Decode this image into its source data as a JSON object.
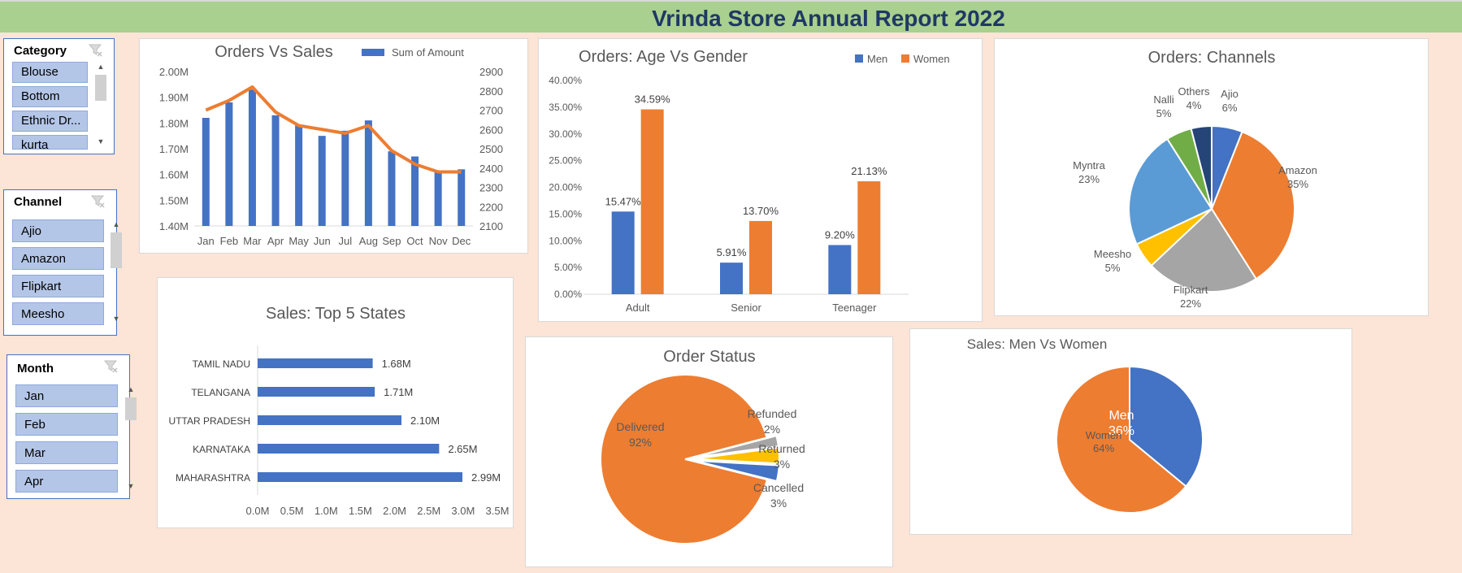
{
  "report_title": "Vrinda Store Annual Report 2022",
  "slicers": {
    "category": {
      "title": "Category",
      "items": [
        "Blouse",
        "Bottom",
        "Ethnic Dr...",
        "kurta"
      ]
    },
    "channel": {
      "title": "Channel",
      "items": [
        "Ajio",
        "Amazon",
        "Flipkart",
        "Meesho"
      ]
    },
    "month": {
      "title": "Month",
      "items": [
        "Jan",
        "Feb",
        "Mar",
        "Apr"
      ]
    }
  },
  "icons": {
    "clear_filter": "clear-filter-icon",
    "scroll_up": "▲",
    "scroll_down": "▼"
  },
  "colors": {
    "blue": "#4472c4",
    "orange": "#ed7d31",
    "gray": "#a5a5a5",
    "gold": "#ffc000",
    "lightblue": "#5b9bd5",
    "green": "#70ad47",
    "navy": "#264478",
    "banner": "#a9d08e",
    "title": "#1f3864"
  },
  "chart_data": [
    {
      "id": "orders_vs_sales",
      "type": "bar",
      "title": "Orders Vs Sales",
      "categories": [
        "Jan",
        "Feb",
        "Mar",
        "Apr",
        "May",
        "Jun",
        "Jul",
        "Aug",
        "Sep",
        "Oct",
        "Nov",
        "Dec"
      ],
      "series": [
        {
          "name": "Sum of Amount",
          "type": "bar",
          "axis": "left",
          "values": [
            1.82,
            1.88,
            1.93,
            1.83,
            1.79,
            1.75,
            1.77,
            1.81,
            1.69,
            1.67,
            1.61,
            1.62
          ]
        },
        {
          "type": "line",
          "axis": "right",
          "values": [
            2700,
            2750,
            2820,
            2690,
            2620,
            2600,
            2580,
            2620,
            2490,
            2420,
            2380,
            2380
          ]
        }
      ],
      "y_left": {
        "min": 1.4,
        "max": 2.0,
        "ticks": [
          "1.40M",
          "1.50M",
          "1.60M",
          "1.70M",
          "1.80M",
          "1.90M",
          "2.00M"
        ]
      },
      "y_right": {
        "min": 2100,
        "max": 2900,
        "ticks": [
          "2100",
          "2200",
          "2300",
          "2400",
          "2500",
          "2600",
          "2700",
          "2800",
          "2900"
        ]
      },
      "legend": "top-right"
    },
    {
      "id": "age_vs_gender",
      "type": "bar",
      "title": "Orders: Age Vs Gender",
      "categories": [
        "Adult",
        "Senior",
        "Teenager"
      ],
      "series": [
        {
          "name": "Men",
          "values": [
            15.47,
            5.91,
            9.2
          ],
          "labels": [
            "15.47%",
            "5.91%",
            "9.20%"
          ]
        },
        {
          "name": "Women",
          "values": [
            34.59,
            13.7,
            21.13
          ],
          "labels": [
            "34.59%",
            "13.70%",
            "21.13%"
          ]
        }
      ],
      "ylim": [
        0,
        40
      ],
      "y_ticks": [
        "0.00%",
        "5.00%",
        "10.00%",
        "15.00%",
        "20.00%",
        "25.00%",
        "30.00%",
        "35.00%",
        "40.00%"
      ],
      "legend": "top-right"
    },
    {
      "id": "channels",
      "type": "pie",
      "title": "Orders: Channels",
      "slices": [
        {
          "name": "Ajio",
          "value": 6,
          "label": "6%"
        },
        {
          "name": "Amazon",
          "value": 35,
          "label": "35%"
        },
        {
          "name": "Flipkart",
          "value": 22,
          "label": "22%"
        },
        {
          "name": "Meesho",
          "value": 5,
          "label": "5%"
        },
        {
          "name": "Myntra",
          "value": 23,
          "label": "23%"
        },
        {
          "name": "Nalli",
          "value": 5,
          "label": "5%"
        },
        {
          "name": "Others",
          "value": 4,
          "label": "4%"
        }
      ]
    },
    {
      "id": "top_states",
      "type": "bar",
      "orientation": "horizontal",
      "title": "Sales: Top 5 States",
      "categories": [
        "TAMIL NADU",
        "TELANGANA",
        "UTTAR PRADESH",
        "KARNATAKA",
        "MAHARASHTRA"
      ],
      "values": [
        1.68,
        1.71,
        2.1,
        2.65,
        2.99
      ],
      "labels": [
        "1.68M",
        "1.71M",
        "2.10M",
        "2.65M",
        "2.99M"
      ],
      "xlim": [
        0,
        3.5
      ],
      "x_ticks": [
        "0.0M",
        "0.5M",
        "1.0M",
        "1.5M",
        "2.0M",
        "2.5M",
        "3.0M",
        "3.5M"
      ]
    },
    {
      "id": "order_status",
      "type": "pie",
      "title": "Order Status",
      "slices": [
        {
          "name": "Delivered",
          "value": 92,
          "label": "92%"
        },
        {
          "name": "Refunded",
          "value": 2,
          "label": "2%"
        },
        {
          "name": "Returned",
          "value": 3,
          "label": "3%"
        },
        {
          "name": "Cancelled",
          "value": 3,
          "label": "3%"
        }
      ]
    },
    {
      "id": "men_vs_women",
      "type": "pie",
      "title": "Sales: Men Vs Women",
      "slices": [
        {
          "name": "Men",
          "value": 36,
          "label": "36%"
        },
        {
          "name": "Women",
          "value": 64,
          "label": "64%"
        }
      ]
    }
  ]
}
